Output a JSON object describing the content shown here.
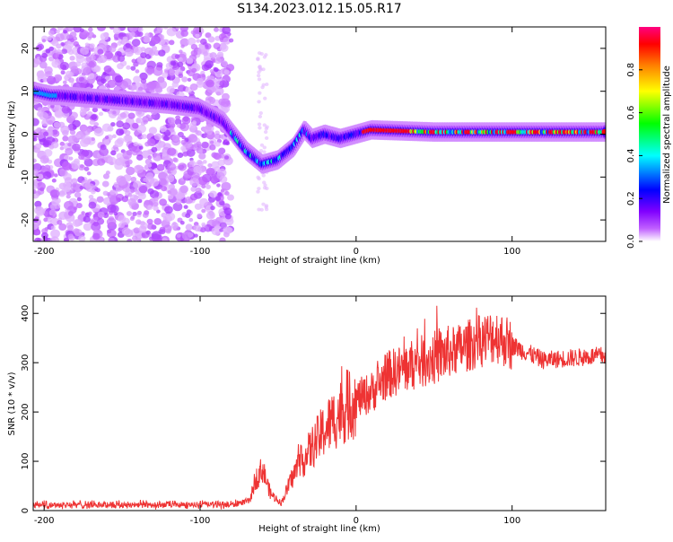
{
  "title": "S134.2023.012.15.05.R17",
  "chart_data": [
    {
      "type": "heatmap",
      "name": "spectrogram",
      "xlabel": "Height of straight line (km)",
      "ylabel": "Frequency (Hz)",
      "xlim": [
        -207,
        160
      ],
      "ylim": [
        -25,
        25
      ],
      "x_ticks": [
        "-200",
        "-100",
        "0",
        "100"
      ],
      "y_ticks": [
        "20",
        "10",
        "0",
        "-10",
        "-20"
      ],
      "grid": false,
      "colorbar": {
        "label": "Normalized spectral amplitude",
        "range": [
          0,
          1
        ],
        "ticks": [
          "0.0",
          "0.2",
          "0.4",
          "0.6",
          "0.8"
        ],
        "colors": [
          "#ffffff",
          "#c060ff",
          "#8000ff",
          "#0000ff",
          "#00ffff",
          "#00ff00",
          "#ffff00",
          "#ff8000",
          "#ff0000",
          "#ff0080"
        ]
      },
      "trace": {
        "x": [
          -207,
          -195,
          -190,
          -120,
          -100,
          -85,
          -70,
          -60,
          -50,
          -40,
          -33,
          -28,
          -20,
          -10,
          0,
          10,
          50,
          100,
          160
        ],
        "y": [
          10,
          9,
          9,
          7,
          6,
          3,
          -4,
          -7,
          -6,
          -3,
          1,
          -1,
          0,
          -1,
          0,
          1,
          0.5,
          0.5,
          0.5
        ],
        "peak_amplitude": 0.9
      },
      "noise_region_x": [
        -207,
        -80
      ]
    },
    {
      "type": "line",
      "name": "snr",
      "xlabel": "Height of straight line (km)",
      "ylabel": "SNR (10 * v/v)",
      "xlim": [
        -207,
        160
      ],
      "ylim": [
        0,
        435
      ],
      "x_ticks": [
        "-200",
        "-100",
        "0",
        "100"
      ],
      "y_ticks": [
        "0",
        "100",
        "200",
        "300",
        "400"
      ],
      "line_color": "#ee3333",
      "grid": false,
      "envelope": {
        "x": [
          -207,
          -80,
          -68,
          -65,
          -60,
          -55,
          -48,
          -42,
          -38,
          -30,
          -20,
          -10,
          0,
          10,
          20,
          40,
          60,
          80,
          90,
          100,
          120,
          140,
          160
        ],
        "y": [
          12,
          12,
          20,
          60,
          85,
          35,
          15,
          60,
          85,
          120,
          165,
          200,
          225,
          240,
          275,
          300,
          320,
          345,
          355,
          335,
          305,
          310,
          315
        ]
      }
    }
  ]
}
